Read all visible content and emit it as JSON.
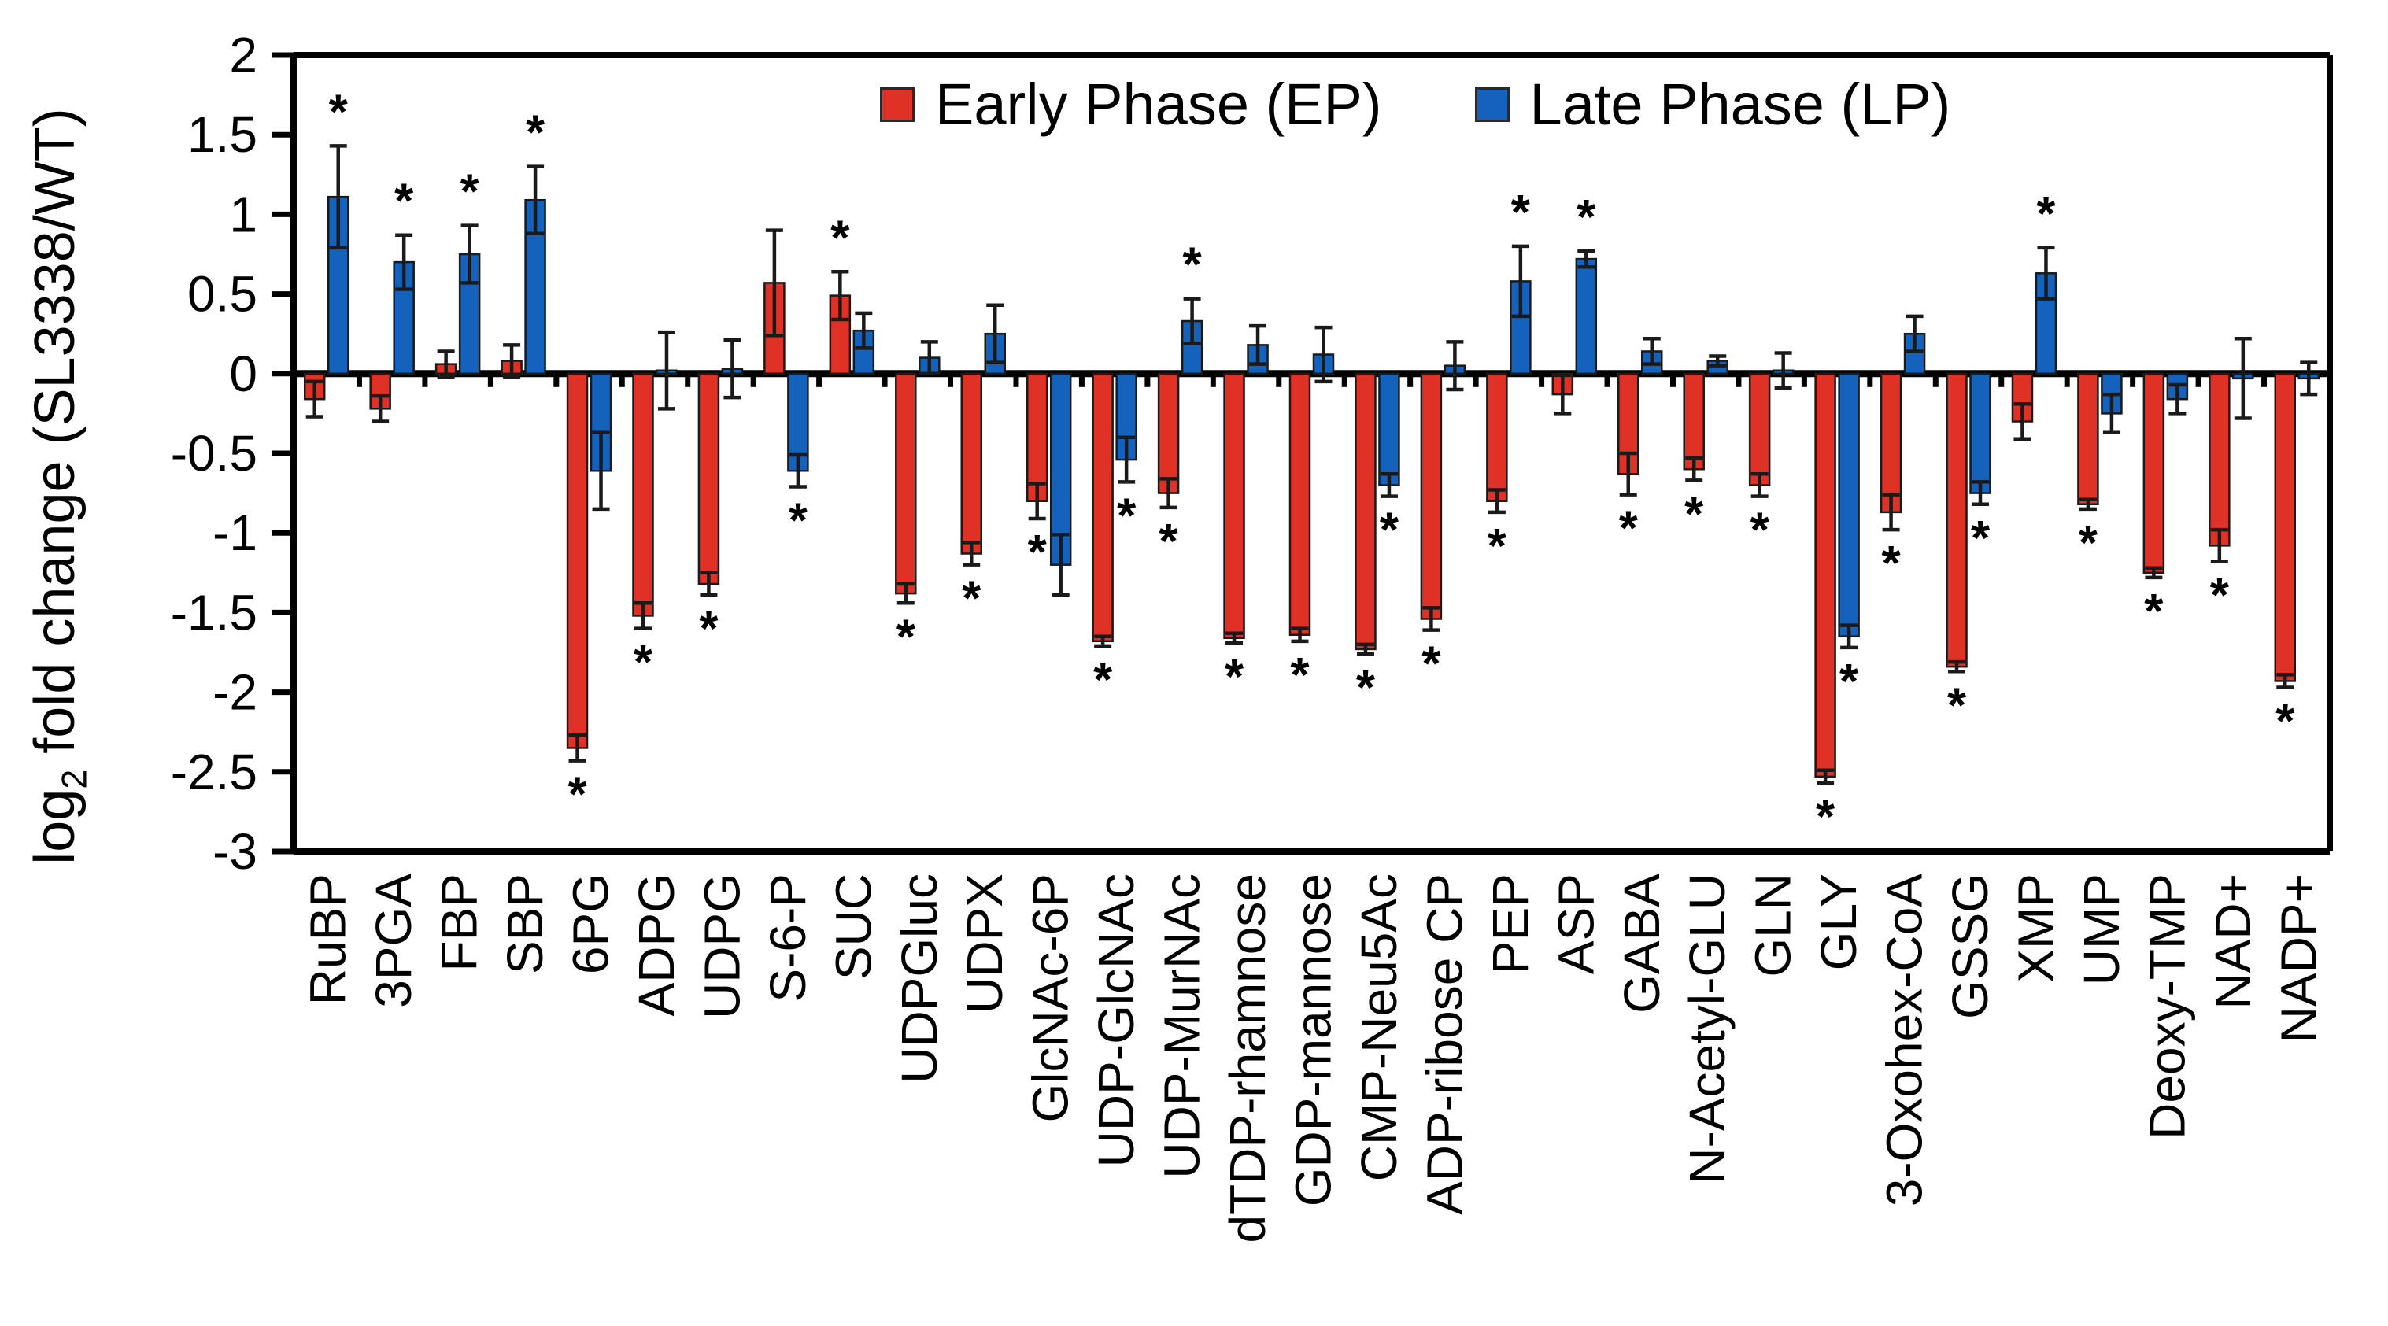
{
  "figure": {
    "ylabel": {
      "prefix": "log",
      "sub": "2",
      "suffix": " fold change (SL3338/WT)"
    }
  },
  "legend": [
    {
      "label": "Early Phase (EP)",
      "color": "#e03127"
    },
    {
      "label": "Late Phase (LP)",
      "color": "#1562bc"
    }
  ],
  "chart_data": {
    "type": "bar",
    "title": "",
    "xlabel": "",
    "ylabel": "log2 fold change (SL3338/WT)",
    "ylim": [
      -3,
      2
    ],
    "ytick_labels": [
      "2",
      "1.5",
      "1",
      "0.5",
      "0",
      "-0.5",
      "-1",
      "-1.5",
      "-2",
      "-2.5",
      "-3"
    ],
    "grid": false,
    "legend_position": "top-center",
    "significance_marker": "*",
    "error_bars": "plus-minus",
    "categories": [
      "RuBP",
      "3PGA",
      "FBP",
      "SBP",
      "6PG",
      "ADPG",
      "UDPG",
      "S-6-P",
      "SUC",
      "UDPGluc",
      "UDPX",
      "GlcNAc-6P",
      "UDP-GlcNAc",
      "UDP-MurNAc",
      "dTDP-rhamnose",
      "GDP-mannose",
      "CMP-Neu5Ac",
      "ADP-ribose CP",
      "PEP",
      "ASP",
      "GABA",
      "N-Acetyl-GLU",
      "GLN",
      "GLY",
      "3-Oxohex-CoA",
      "GSSG",
      "XMP",
      "UMP",
      "Deoxy-TMP",
      "NAD+",
      "NADP+"
    ],
    "series": [
      {
        "name": "Early Phase (EP)",
        "color": "#e03127",
        "values": [
          -0.16,
          -0.22,
          0.06,
          0.08,
          -2.35,
          -1.52,
          -1.32,
          0.57,
          0.49,
          -1.38,
          -1.13,
          -0.8,
          -1.68,
          -0.75,
          -1.66,
          -1.64,
          -1.73,
          -1.54,
          -0.8,
          -0.13,
          -0.63,
          -0.6,
          -0.7,
          -2.53,
          -0.87,
          -1.84,
          -0.3,
          -0.82,
          -1.25,
          -1.08,
          -1.93
        ],
        "errors": [
          0.11,
          0.08,
          0.08,
          0.1,
          0.08,
          0.08,
          0.07,
          0.33,
          0.15,
          0.06,
          0.07,
          0.11,
          0.03,
          0.09,
          0.03,
          0.04,
          0.03,
          0.07,
          0.07,
          0.12,
          0.13,
          0.07,
          0.07,
          0.04,
          0.11,
          0.03,
          0.11,
          0.03,
          0.03,
          0.1,
          0.04
        ],
        "significant": [
          false,
          false,
          false,
          false,
          true,
          true,
          true,
          false,
          true,
          true,
          true,
          true,
          true,
          true,
          true,
          true,
          true,
          true,
          true,
          false,
          true,
          true,
          true,
          true,
          true,
          true,
          false,
          true,
          true,
          true,
          true
        ]
      },
      {
        "name": "Late Phase (LP)",
        "color": "#1562bc",
        "values": [
          1.11,
          0.7,
          0.75,
          1.09,
          -0.61,
          0.02,
          0.03,
          -0.61,
          0.27,
          0.1,
          0.25,
          -1.2,
          -0.54,
          0.33,
          0.18,
          0.12,
          -0.7,
          0.05,
          0.58,
          0.72,
          0.14,
          0.08,
          0.02,
          -1.65,
          0.25,
          -0.75,
          0.63,
          -0.25,
          -0.16,
          -0.03,
          -0.03
        ],
        "errors": [
          0.32,
          0.17,
          0.18,
          0.21,
          0.24,
          0.24,
          0.18,
          0.1,
          0.11,
          0.1,
          0.18,
          0.19,
          0.14,
          0.14,
          0.12,
          0.17,
          0.07,
          0.15,
          0.22,
          0.05,
          0.08,
          0.03,
          0.11,
          0.07,
          0.11,
          0.07,
          0.16,
          0.12,
          0.09,
          0.25,
          0.1
        ],
        "significant": [
          true,
          true,
          true,
          true,
          false,
          false,
          false,
          true,
          false,
          false,
          false,
          false,
          true,
          true,
          false,
          false,
          true,
          false,
          true,
          true,
          false,
          false,
          false,
          true,
          false,
          true,
          true,
          false,
          false,
          false,
          false
        ]
      }
    ]
  }
}
